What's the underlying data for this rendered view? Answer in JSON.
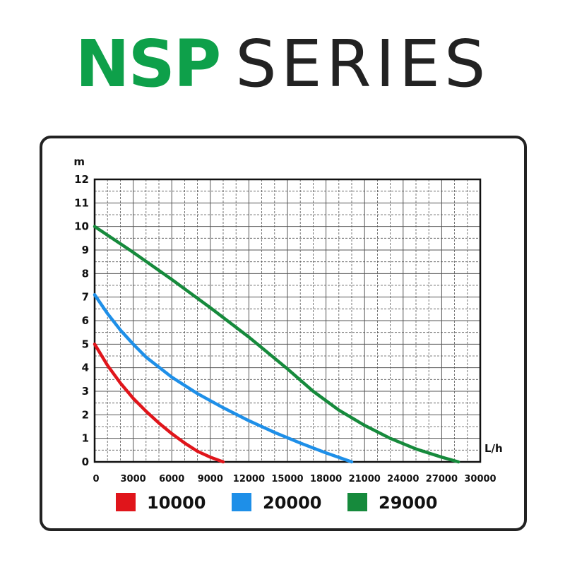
{
  "title": {
    "bold_part": "NSP",
    "light_part": "SERIES"
  },
  "colors": {
    "title_bold": "#0ea04a",
    "title_light": "#222222",
    "grid": "#555555",
    "axis": "#111111"
  },
  "chart_data": {
    "type": "line",
    "title": "",
    "ylabel": "m",
    "xlabel": "L/h",
    "xlim": [
      0,
      30000
    ],
    "ylim": [
      0,
      12
    ],
    "x_ticks": [
      0,
      3000,
      6000,
      9000,
      12000,
      15000,
      18000,
      21000,
      24000,
      27000,
      30000
    ],
    "y_ticks": [
      0,
      1,
      2,
      3,
      4,
      5,
      6,
      7,
      8,
      9,
      10,
      11,
      12
    ],
    "grid": true,
    "legend": "bottom",
    "series": [
      {
        "name": "10000",
        "color": "#e0151b",
        "points": [
          [
            0,
            5
          ],
          [
            1000,
            4.1
          ],
          [
            2000,
            3.35
          ],
          [
            3000,
            2.7
          ],
          [
            4000,
            2.15
          ],
          [
            5000,
            1.65
          ],
          [
            6000,
            1.2
          ],
          [
            7000,
            0.8
          ],
          [
            8000,
            0.45
          ],
          [
            9000,
            0.2
          ],
          [
            10000,
            0
          ]
        ]
      },
      {
        "name": "20000",
        "color": "#1e8fe8",
        "points": [
          [
            0,
            7.1
          ],
          [
            1000,
            6.3
          ],
          [
            2000,
            5.6
          ],
          [
            3000,
            5.0
          ],
          [
            4000,
            4.45
          ],
          [
            6000,
            3.6
          ],
          [
            8000,
            2.9
          ],
          [
            10000,
            2.3
          ],
          [
            12000,
            1.75
          ],
          [
            14000,
            1.25
          ],
          [
            16000,
            0.8
          ],
          [
            18000,
            0.38
          ],
          [
            20000,
            0
          ]
        ]
      },
      {
        "name": "29000",
        "color": "#168a3c",
        "points": [
          [
            0,
            10
          ],
          [
            3000,
            8.9
          ],
          [
            6000,
            7.75
          ],
          [
            9000,
            6.55
          ],
          [
            12000,
            5.3
          ],
          [
            15000,
            3.95
          ],
          [
            17000,
            3.0
          ],
          [
            19000,
            2.2
          ],
          [
            21000,
            1.55
          ],
          [
            23000,
            1.0
          ],
          [
            25000,
            0.55
          ],
          [
            27000,
            0.2
          ],
          [
            28300,
            0
          ]
        ]
      }
    ]
  }
}
